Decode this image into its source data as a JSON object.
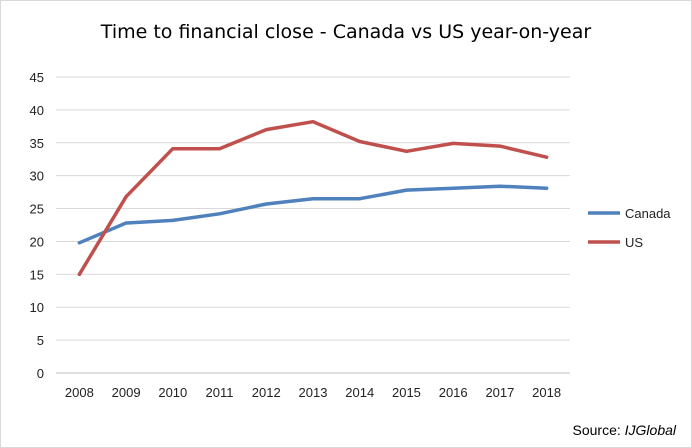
{
  "chart_data": {
    "type": "line",
    "title": "Time to financial close - Canada vs US year-on-year",
    "xlabel": "",
    "ylabel": "",
    "categories": [
      "2008",
      "2009",
      "2010",
      "2011",
      "2012",
      "2013",
      "2014",
      "2015",
      "2016",
      "2017",
      "2018"
    ],
    "ylim": [
      0,
      45
    ],
    "yticks": [
      0,
      5,
      10,
      15,
      20,
      25,
      30,
      35,
      40,
      45
    ],
    "grid": true,
    "legend_position": "right",
    "series": [
      {
        "name": "Canada",
        "color": "#4f81bd",
        "values": [
          19.8,
          22.8,
          23.2,
          24.2,
          25.7,
          26.5,
          26.5,
          27.8,
          28.1,
          28.4,
          28.1
        ]
      },
      {
        "name": "US",
        "color": "#c0504d",
        "values": [
          15.0,
          26.8,
          34.1,
          34.1,
          37.0,
          38.2,
          35.2,
          33.7,
          34.9,
          34.5,
          32.8
        ]
      }
    ]
  },
  "source": {
    "label": "Source: ",
    "name": "IJGlobal"
  }
}
